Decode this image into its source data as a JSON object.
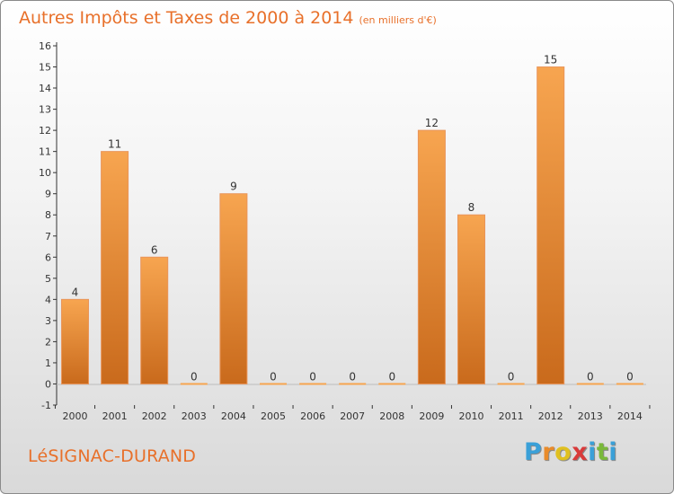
{
  "header": {
    "title": "Autres Impôts et Taxes de 2000 à 2014",
    "unit": "(en milliers d'€)"
  },
  "commune": "LéSIGNAC-DURAND",
  "logo": {
    "letters": [
      "P",
      "r",
      "o",
      "x",
      "i",
      "t",
      "i"
    ],
    "colors": [
      "#3aa0d8",
      "#e98b2a",
      "#e0c020",
      "#d93a3a",
      "#3aa0d8",
      "#7ab83a",
      "#3aa0d8"
    ]
  },
  "colors": {
    "bar_light": "#f7a550",
    "bar_dark": "#c96a1c",
    "title": "#e8702a"
  },
  "chart_data": {
    "type": "bar",
    "title": "Autres Impôts et Taxes de 2000 à 2014",
    "subtitle": "(en milliers d'€)",
    "categories": [
      "2000",
      "2001",
      "2002",
      "2003",
      "2004",
      "2005",
      "2006",
      "2007",
      "2008",
      "2009",
      "2010",
      "2011",
      "2012",
      "2013",
      "2014"
    ],
    "values": [
      4,
      11,
      6,
      0,
      9,
      0,
      0,
      0,
      0,
      12,
      8,
      0,
      15,
      0,
      0
    ],
    "ylim": [
      -1,
      16
    ],
    "yticks": [
      "-1",
      "0",
      "1",
      "2",
      "3",
      "4",
      "5",
      "6",
      "7",
      "8",
      "9",
      "10",
      "11",
      "12",
      "13",
      "14",
      "15",
      "16"
    ],
    "grid": false,
    "xlabel": "",
    "ylabel": ""
  }
}
